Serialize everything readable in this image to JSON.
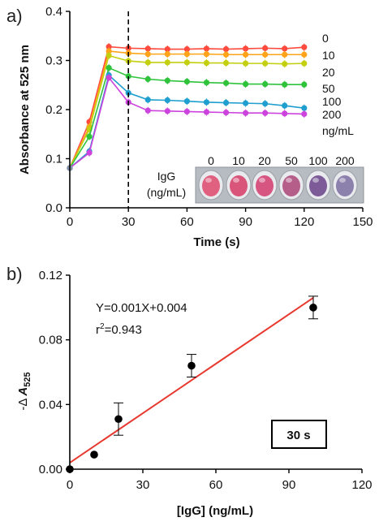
{
  "chart_data": [
    {
      "panel_label": "a)",
      "type": "line",
      "xlabel": "Time (s)",
      "ylabel": "Absorbance at 525 nm",
      "xlim": [
        0,
        150
      ],
      "ylim": [
        0.0,
        0.4
      ],
      "xticks": [
        "0",
        "30",
        "60",
        "90",
        "120",
        "150"
      ],
      "yticks": [
        "0.0",
        "0.1",
        "0.2",
        "0.3",
        "0.4"
      ],
      "x": [
        0,
        10,
        20,
        30,
        40,
        50,
        60,
        70,
        80,
        90,
        100,
        110,
        120
      ],
      "marker_line_x": 30,
      "series": [
        {
          "name": "0",
          "color": "#ff4a3d",
          "values": [
            0.081,
            0.175,
            0.328,
            0.325,
            0.324,
            0.323,
            0.323,
            0.324,
            0.323,
            0.324,
            0.325,
            0.324,
            0.327
          ]
        },
        {
          "name": "10",
          "color": "#ffa318",
          "values": [
            0.081,
            0.165,
            0.319,
            0.315,
            0.313,
            0.313,
            0.313,
            0.313,
            0.312,
            0.312,
            0.312,
            0.312,
            0.312
          ]
        },
        {
          "name": "20",
          "color": "#c4cf10",
          "values": [
            0.081,
            0.16,
            0.31,
            0.299,
            0.296,
            0.296,
            0.296,
            0.295,
            0.295,
            0.294,
            0.294,
            0.293,
            0.294
          ]
        },
        {
          "name": "50",
          "color": "#2fc33c",
          "values": [
            0.081,
            0.145,
            0.285,
            0.268,
            0.262,
            0.259,
            0.257,
            0.255,
            0.254,
            0.252,
            0.252,
            0.251,
            0.251
          ]
        },
        {
          "name": "100",
          "color": "#1f9fcf",
          "values": [
            0.081,
            0.115,
            0.27,
            0.234,
            0.22,
            0.219,
            0.217,
            0.215,
            0.214,
            0.213,
            0.212,
            0.208,
            0.203
          ]
        },
        {
          "name": "200",
          "color": "#cc44dd",
          "values": [
            0.081,
            0.112,
            0.265,
            0.215,
            0.198,
            0.197,
            0.196,
            0.195,
            0.194,
            0.193,
            0.193,
            0.192,
            0.191
          ]
        }
      ],
      "legend_unit": "ng/mL",
      "inset": {
        "label_line1": "IgG",
        "label_line2": "(ng/mL)",
        "wells": [
          {
            "label": "0",
            "color": "#e0607f"
          },
          {
            "label": "10",
            "color": "#d9557a"
          },
          {
            "label": "20",
            "color": "#d65581"
          },
          {
            "label": "50",
            "color": "#b65e8a"
          },
          {
            "label": "100",
            "color": "#7d5b98"
          },
          {
            "label": "200",
            "color": "#8c80ac"
          }
        ]
      }
    },
    {
      "panel_label": "b)",
      "type": "scatter",
      "xlabel": "[IgG] (ng/mL)",
      "ylabel_prefix": "-Δ",
      "ylabel_main": "A",
      "ylabel_sub": "525",
      "xlim": [
        0,
        120
      ],
      "ylim": [
        0.0,
        0.12
      ],
      "xticks": [
        "0",
        "30",
        "60",
        "90",
        "120"
      ],
      "yticks": [
        "0.00",
        "0.04",
        "0.08",
        "0.12"
      ],
      "points": [
        {
          "x": 0,
          "y": 0.0,
          "err": 0.0
        },
        {
          "x": 10,
          "y": 0.009,
          "err": 0.0
        },
        {
          "x": 20,
          "y": 0.031,
          "err": 0.01
        },
        {
          "x": 50,
          "y": 0.064,
          "err": 0.007
        },
        {
          "x": 100,
          "y": 0.1,
          "err": 0.007
        }
      ],
      "fit_line": {
        "color": "#e8392f",
        "x0": 0,
        "y0": 0.004,
        "x1": 100,
        "y1": 0.106
      },
      "equation": "Y=0.001X+0.004",
      "r2_prefix": "r",
      "r2_sup": "2",
      "r2_value": "=0.943",
      "time_box": "30 s"
    }
  ]
}
